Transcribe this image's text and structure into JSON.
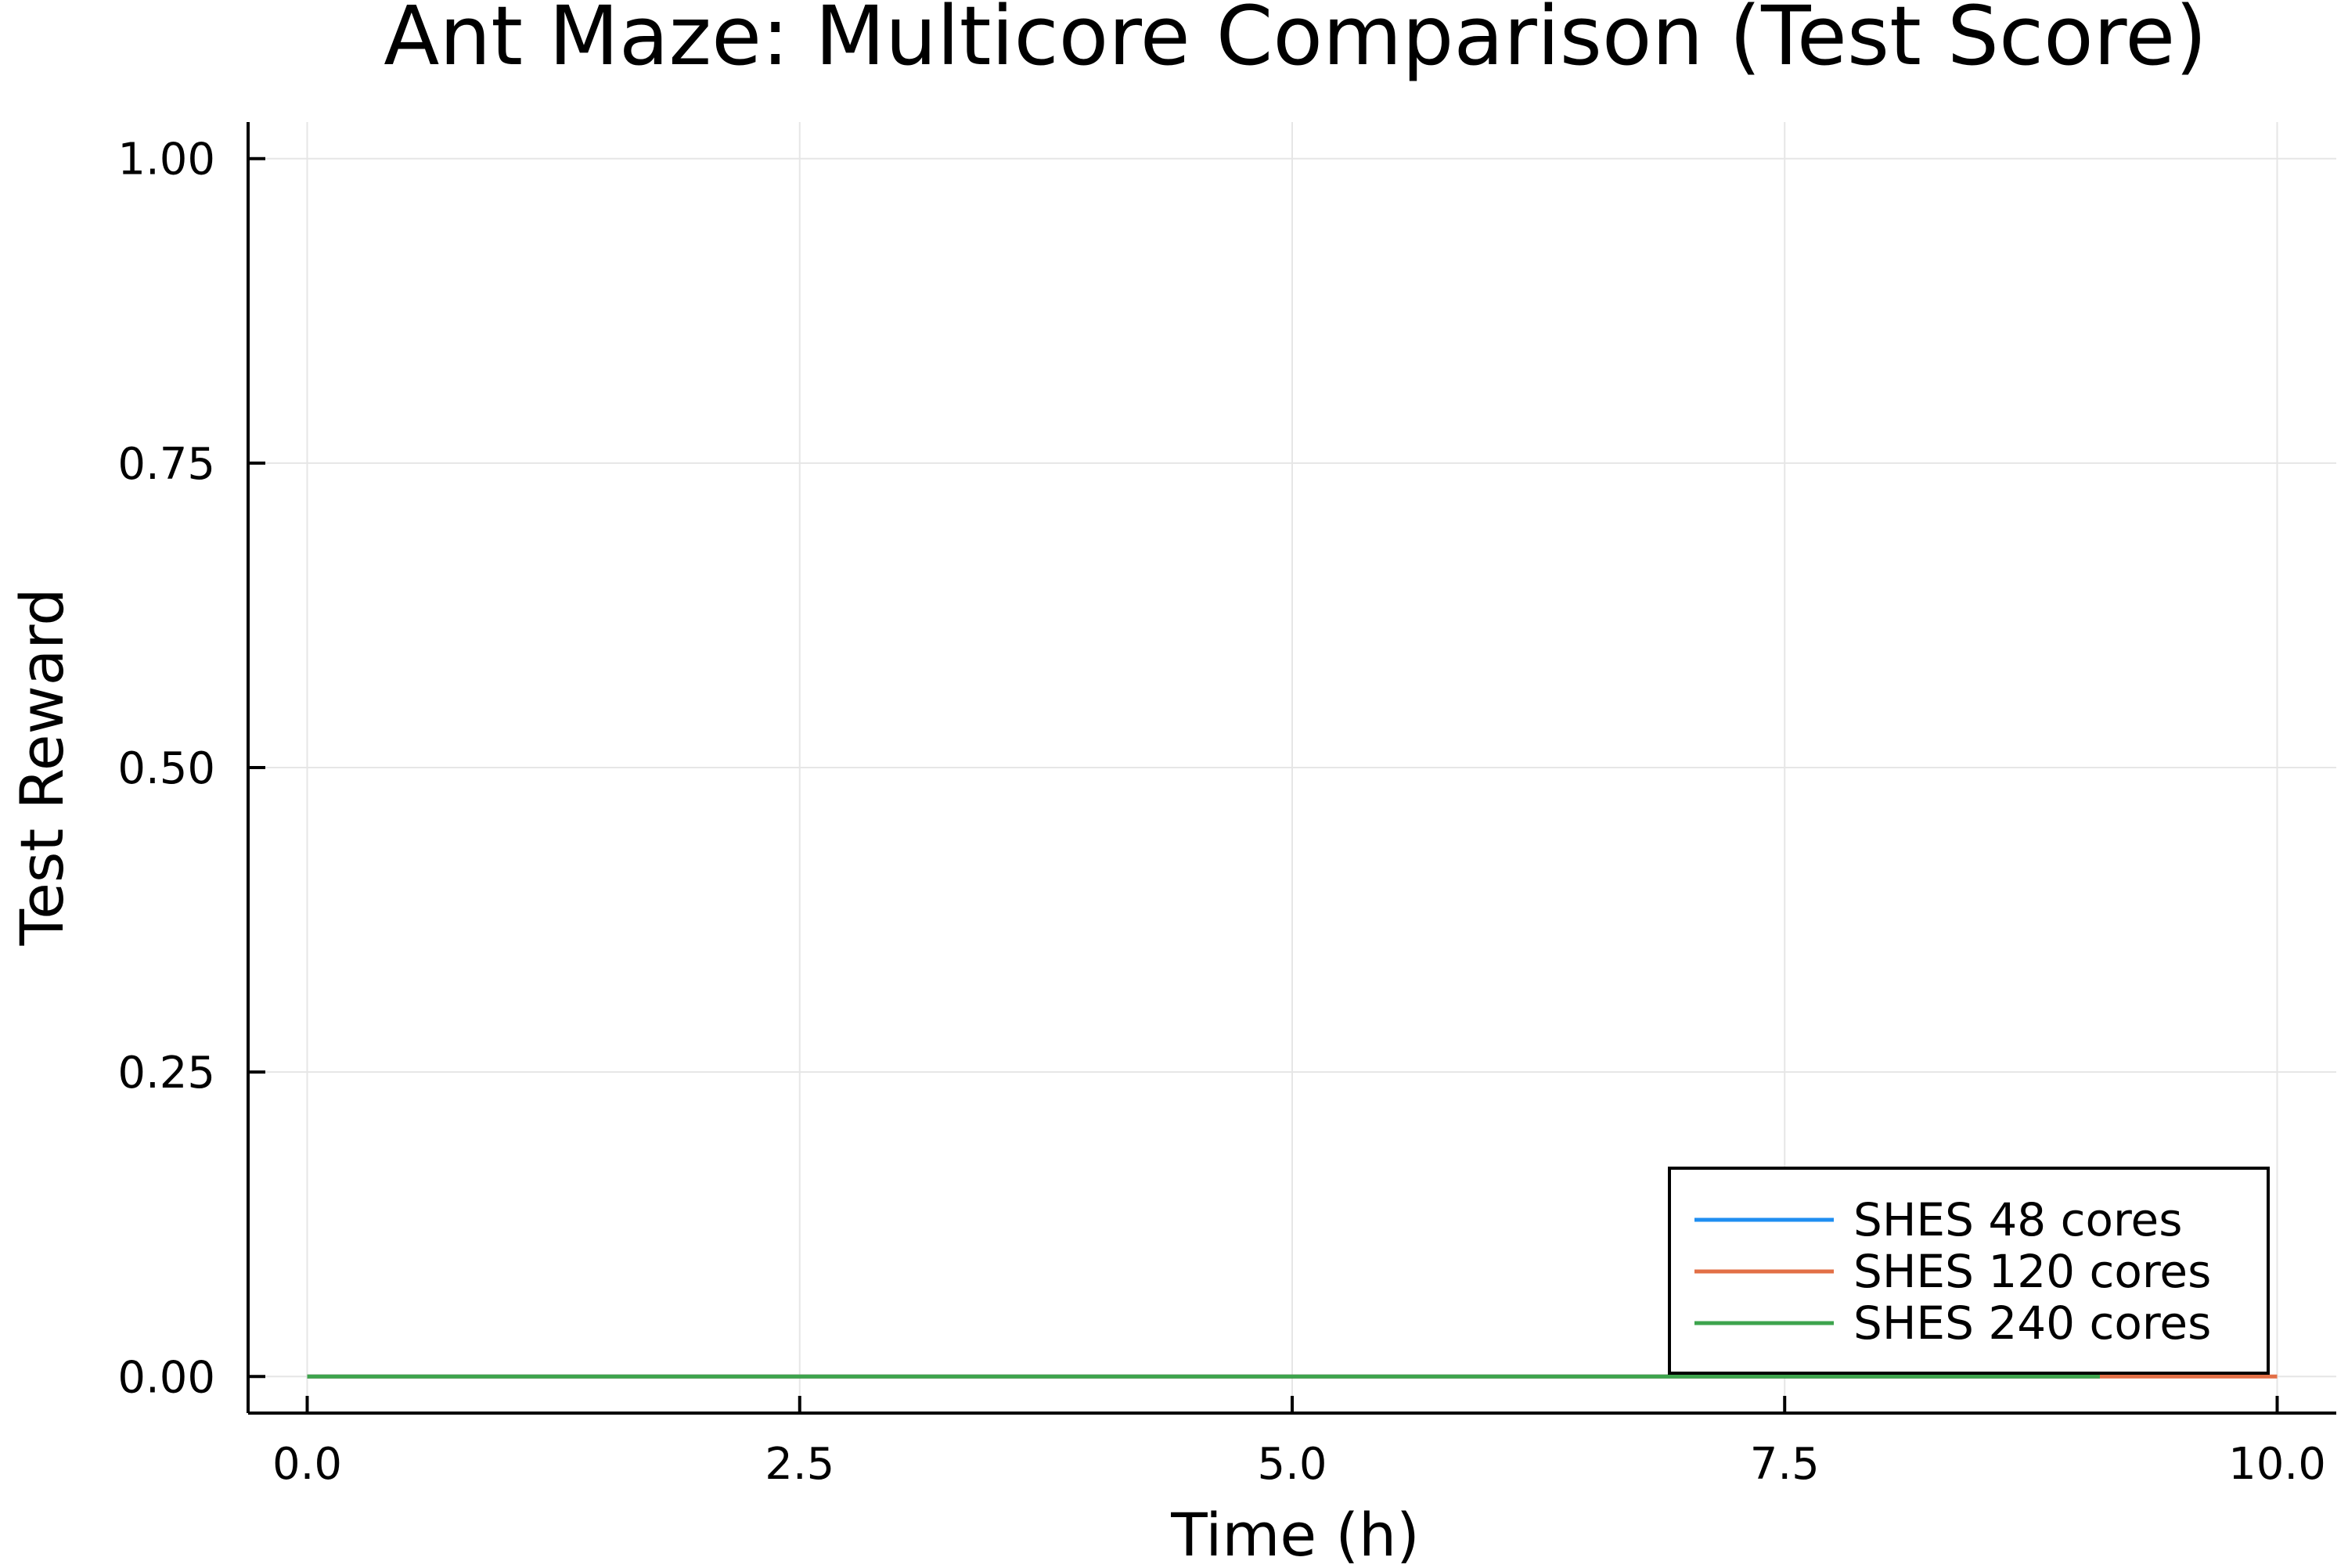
{
  "chart_data": {
    "type": "line",
    "title": "Ant Maze: Multicore Comparison (Test Score)",
    "xlabel": "Time (h)",
    "ylabel": "Test Reward",
    "xlim": [
      -0.3,
      10.3
    ],
    "ylim": [
      -0.03,
      1.03
    ],
    "x_ticks": [
      0.0,
      2.5,
      5.0,
      7.5,
      10.0
    ],
    "x_tick_labels": [
      "0.0",
      "2.5",
      "5.0",
      "7.5",
      "10.0"
    ],
    "y_ticks": [
      0.0,
      0.25,
      0.5,
      0.75,
      1.0
    ],
    "y_tick_labels": [
      "0.00",
      "0.25",
      "0.50",
      "0.75",
      "1.00"
    ],
    "grid": true,
    "legend_position": "bottom-right",
    "series": [
      {
        "name": "SHES 48 cores",
        "color": "#1f8ef1",
        "x": [
          0.0,
          9.1
        ],
        "y": [
          0.0,
          0.0
        ]
      },
      {
        "name": "SHES 120 cores",
        "color": "#e26f46",
        "x": [
          0.0,
          10.0
        ],
        "y": [
          0.0,
          0.0
        ]
      },
      {
        "name": "SHES 240 cores",
        "color": "#3da44d",
        "x": [
          0.0,
          9.1
        ],
        "y": [
          0.0,
          0.0
        ]
      }
    ]
  }
}
